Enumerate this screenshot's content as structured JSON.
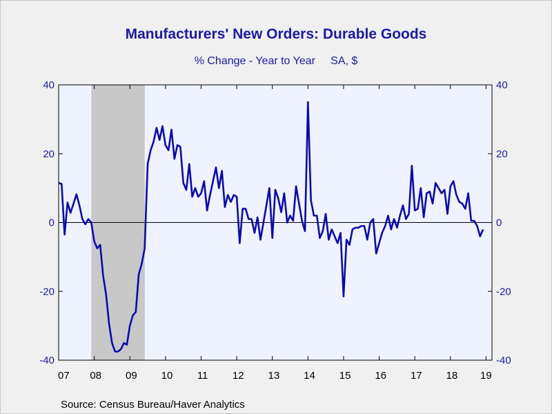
{
  "chart_data": {
    "type": "line",
    "title": "Manufacturers' New Orders: Durable Goods",
    "subtitle": "% Change - Year to Year     SA, $",
    "source": "Source:  Census Bureau/Haver Analytics",
    "x_tick_labels": [
      "07",
      "08",
      "09",
      "10",
      "11",
      "12",
      "13",
      "14",
      "15",
      "16",
      "17",
      "18",
      "19"
    ],
    "y_tick_labels": [
      "40",
      "20",
      "0",
      "-20",
      "-40"
    ],
    "y_ticks": [
      40,
      20,
      0,
      -20,
      -40
    ],
    "ylim": [
      -40,
      40
    ],
    "xlim": [
      "2007-01",
      "2019-03"
    ],
    "recession": {
      "start": "2007-12",
      "end": "2009-06"
    },
    "colors": {
      "line": "#0a0ab4",
      "recession": "#c8c8c8",
      "plot_bg": "#eef3ff",
      "text": "#1a1aa8"
    },
    "series": [
      {
        "x_start": "2007-01",
        "frequency": "monthly",
        "values": [
          11.5,
          11.2,
          -3.5,
          5.8,
          2.8,
          5.5,
          8.2,
          5.0,
          1.0,
          -0.5,
          1.0,
          0.0,
          -5.5,
          -7.5,
          -6.5,
          -15.5,
          -21.0,
          -29.5,
          -35.0,
          -37.5,
          -37.5,
          -36.8,
          -35.0,
          -35.5,
          -30.0,
          -27.0,
          -26.0,
          -15.0,
          -12.0,
          -7.5,
          17.0,
          21.0,
          23.5,
          27.5,
          24.0,
          28.0,
          22.5,
          21.0,
          27.0,
          18.5,
          22.5,
          22.0,
          11.5,
          9.5,
          17.0,
          7.5,
          10.0,
          7.5,
          8.5,
          12.0,
          3.5,
          8.0,
          12.0,
          16.0,
          10.0,
          15.0,
          4.5,
          8.0,
          6.0,
          8.0,
          7.5,
          -6.0,
          4.0,
          4.0,
          1.0,
          1.0,
          -3.0,
          1.5,
          -5.0,
          0.0,
          5.0,
          10.0,
          -4.5,
          9.5,
          7.0,
          3.0,
          8.5,
          0.0,
          2.0,
          0.5,
          10.5,
          5.5,
          0.5,
          -2.5,
          35.0,
          6.5,
          2.0,
          2.0,
          -4.5,
          -2.5,
          2.5,
          -5.0,
          -2.0,
          -4.0,
          -6.0,
          -3.0,
          -21.5,
          -5.0,
          -6.5,
          -2.0,
          -1.5,
          -1.5,
          -1.0,
          -1.0,
          -5.0,
          0.0,
          1.0,
          -9.0,
          -6.0,
          -3.0,
          -1.0,
          2.0,
          -2.0,
          1.0,
          -1.5,
          2.0,
          5.0,
          1.0,
          2.5,
          16.5,
          3.5,
          4.0,
          10.0,
          1.5,
          8.5,
          9.0,
          5.5,
          11.5,
          10.0,
          8.5,
          9.5,
          2.5,
          10.5,
          12.0,
          8.0,
          6.0,
          5.5,
          4.0,
          8.5,
          0.5,
          0.5,
          -1.0,
          -4.0,
          -2.0
        ]
      }
    ]
  }
}
